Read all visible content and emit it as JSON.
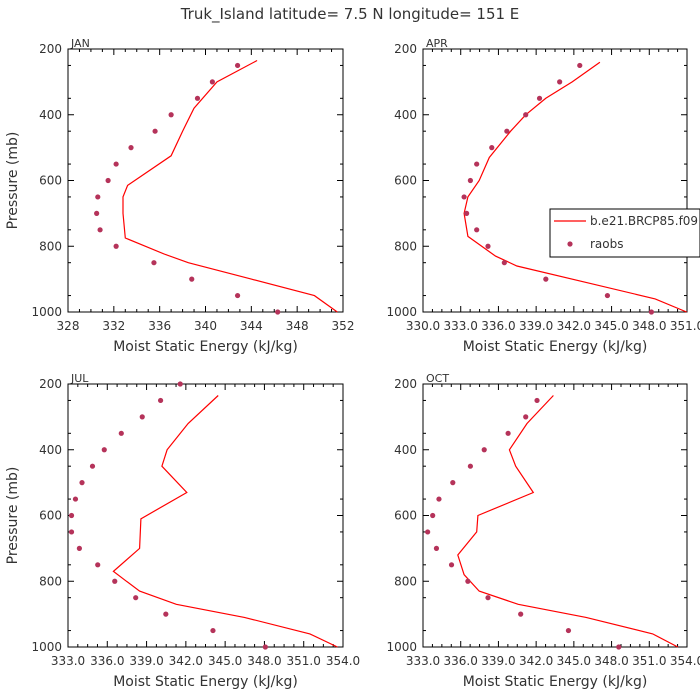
{
  "figure_title": "Truk_Island  latitude= 7.5 N longitude= 151 E",
  "colors": {
    "model": "#ff0000",
    "obs": "#b5335a",
    "axis": "#000000",
    "text": "#333333"
  },
  "chart_data": [
    {
      "type": "line",
      "panel": "JAN",
      "xlabel": "Moist Static Energy (kJ/kg)",
      "ylabel": "Pressure (mb)",
      "xlim": [
        328,
        352
      ],
      "ylim": [
        1000,
        200
      ],
      "xticks": [
        328,
        332,
        336,
        340,
        344,
        348,
        352
      ],
      "xtick_labels": [
        "328",
        "332",
        "336",
        "340",
        "344",
        "348",
        "352"
      ],
      "yticks": [
        200,
        400,
        600,
        800,
        1000
      ],
      "ytick_labels": [
        "200",
        "400",
        "600",
        "800",
        "1000"
      ],
      "series": [
        {
          "name": "b.e21.BRCP85.f09",
          "style": "line",
          "x": [
            351.5,
            349.5,
            344,
            338.5,
            336.5,
            333,
            332.8,
            332.8,
            333.2,
            337,
            338,
            339,
            341,
            344.5
          ],
          "y": [
            1000,
            950,
            900,
            850,
            825,
            775,
            700,
            650,
            615,
            525,
            450,
            380,
            300,
            235
          ]
        },
        {
          "name": "raobs",
          "style": "dots",
          "x": [
            346.3,
            342.8,
            338.8,
            335.5,
            332.2,
            330.8,
            330.5,
            330.6,
            331.5,
            332.2,
            333.5,
            335.6,
            337,
            339.3,
            340.6,
            342.8
          ],
          "y": [
            1000,
            950,
            900,
            850,
            800,
            750,
            700,
            650,
            600,
            550,
            500,
            450,
            400,
            350,
            300,
            250
          ]
        }
      ]
    },
    {
      "type": "line",
      "panel": "APR",
      "xlabel": "Moist Static Energy (kJ/kg)",
      "ylabel": "",
      "xlim": [
        330.03,
        351.03
      ],
      "ylim": [
        1000,
        200
      ],
      "xticks": [
        330.03,
        333.03,
        336.03,
        339.03,
        342.03,
        345.03,
        348.03,
        351.03
      ],
      "xtick_labels": [
        "330.0",
        "333.0",
        "336.0",
        "339.0",
        "342.0",
        "345.0",
        "348.0",
        "351.0"
      ],
      "yticks": [
        200,
        400,
        600,
        800,
        1000
      ],
      "ytick_labels": [
        "200",
        "400",
        "600",
        "800",
        "1000"
      ],
      "legend": {
        "placement": "right",
        "entries": [
          "b.e21.BRCP85.f09",
          "raobs"
        ]
      },
      "series": [
        {
          "name": "b.e21.BRCP85.f09",
          "style": "line",
          "x": [
            351,
            348.5,
            343,
            337.5,
            335.8,
            333.6,
            333.3,
            333.6,
            334.5,
            335.3,
            337,
            338.2,
            339.8,
            341.9,
            344.1
          ],
          "y": [
            1000,
            960,
            910,
            860,
            830,
            770,
            700,
            650,
            600,
            530,
            450,
            400,
            350,
            300,
            240
          ]
        },
        {
          "name": "raobs",
          "style": "dots",
          "x": [
            348.2,
            344.7,
            339.8,
            336.5,
            335.2,
            334.3,
            333.5,
            333.3,
            333.8,
            334.3,
            335.5,
            336.7,
            338.2,
            339.3,
            340.9,
            342.5
          ],
          "y": [
            1000,
            950,
            900,
            850,
            800,
            750,
            700,
            650,
            600,
            550,
            500,
            450,
            400,
            350,
            300,
            250
          ]
        }
      ]
    },
    {
      "type": "line",
      "panel": "JUL",
      "xlabel": "Moist Static Energy (kJ/kg)",
      "ylabel": "Pressure (mb)",
      "xlim": [
        333.03,
        354.03
      ],
      "ylim": [
        1000,
        200
      ],
      "xticks": [
        333.03,
        336.03,
        339.03,
        342.03,
        345.03,
        348.03,
        351.03,
        354.03
      ],
      "xtick_labels": [
        "333.0",
        "336.0",
        "339.0",
        "342.0",
        "345.0",
        "348.0",
        "351.0",
        "354.0"
      ],
      "yticks": [
        200,
        400,
        600,
        800,
        1000
      ],
      "ytick_labels": [
        "200",
        "400",
        "600",
        "800",
        "1000"
      ],
      "series": [
        {
          "name": "b.e21.BRCP85.f09",
          "style": "line",
          "x": [
            353.6,
            351.5,
            346.5,
            341.3,
            338.5,
            337.5,
            336.5,
            338.5,
            338.6,
            342.1,
            340.2,
            340.6,
            342.2,
            344.5
          ],
          "y": [
            1000,
            960,
            910,
            870,
            830,
            800,
            770,
            700,
            610,
            530,
            450,
            400,
            320,
            235
          ]
        },
        {
          "name": "raobs",
          "style": "dots",
          "x": [
            348.1,
            344.1,
            340.5,
            338.2,
            336.6,
            335.3,
            333.9,
            333.3,
            333.3,
            333.6,
            334.1,
            334.9,
            335.8,
            337.1,
            338.7,
            340.1,
            341.6
          ],
          "y": [
            1000,
            950,
            900,
            850,
            800,
            750,
            700,
            650,
            600,
            550,
            500,
            450,
            400,
            350,
            300,
            250,
            200
          ]
        }
      ]
    },
    {
      "type": "line",
      "panel": "OCT",
      "xlabel": "Moist Static Energy (kJ/kg)",
      "ylabel": "",
      "xlim": [
        333.03,
        354.03
      ],
      "ylim": [
        1000,
        200
      ],
      "xticks": [
        333.03,
        336.03,
        339.03,
        342.03,
        345.03,
        348.03,
        351.03,
        354.03
      ],
      "xtick_labels": [
        "333.0",
        "336.0",
        "339.0",
        "342.0",
        "345.0",
        "348.0",
        "351.0",
        "354.0"
      ],
      "yticks": [
        200,
        400,
        600,
        800,
        1000
      ],
      "ytick_labels": [
        "200",
        "400",
        "600",
        "800",
        "1000"
      ],
      "series": [
        {
          "name": "b.e21.BRCP85.f09",
          "style": "line",
          "x": [
            353.3,
            351.3,
            346,
            340.6,
            337.5,
            336.3,
            335.8,
            337.3,
            337.4,
            341.8,
            340.4,
            339.9,
            341.3,
            343.4
          ],
          "y": [
            1000,
            960,
            910,
            870,
            830,
            780,
            720,
            650,
            600,
            530,
            450,
            400,
            320,
            235
          ]
        },
        {
          "name": "raobs",
          "style": "dots",
          "x": [
            348.6,
            344.6,
            340.8,
            338.2,
            336.6,
            335.3,
            334.1,
            333.4,
            333.8,
            334.3,
            335.4,
            336.8,
            337.9,
            339.8,
            341.2,
            342.1
          ],
          "y": [
            1000,
            950,
            900,
            850,
            800,
            750,
            700,
            650,
            600,
            550,
            500,
            450,
            400,
            350,
            300,
            250
          ]
        }
      ]
    }
  ]
}
